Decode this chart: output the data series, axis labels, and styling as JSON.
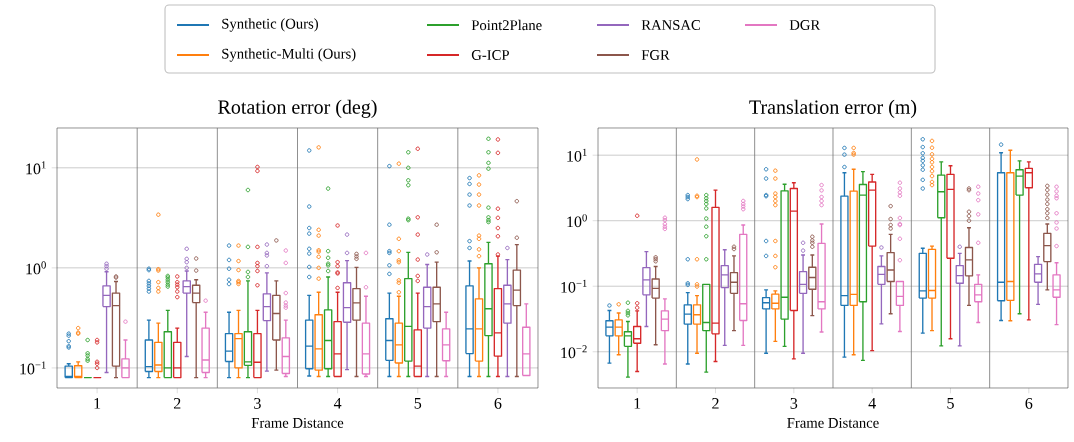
{
  "chart_data": [
    {
      "type": "box",
      "title": "Rotation error (deg)",
      "xlabel": "Frame Distance",
      "categories": [
        "1",
        "2",
        "3",
        "4",
        "5",
        "6"
      ],
      "log": "y",
      "grid": true,
      "legend": "top",
      "marker": "circle",
      "ylim": [
        0.063,
        25
      ],
      "yticks": [
        {
          "value": 0.1,
          "label": "10$^{−1}$"
        },
        {
          "value": 1,
          "label": "10$^{0}$"
        },
        {
          "value": 10,
          "label": "10$^{1}$"
        }
      ],
      "series": [
        {
          "name": "Synthetic (Ours)",
          "color": "#1f77b4",
          "boxes": [
            {
              "low": 0.08,
              "q1": 0.08,
              "median": 0.082,
              "q3": 0.104,
              "high": 0.11,
              "outliers": [
                0.16,
                0.165,
                0.185,
                0.21,
                0.22
              ]
            },
            {
              "low": 0.08,
              "q1": 0.092,
              "median": 0.103,
              "q3": 0.19,
              "high": 0.3,
              "outliers": [
                0.58,
                0.62,
                0.66,
                0.7,
                0.74,
                0.95,
                0.98
              ]
            },
            {
              "low": 0.08,
              "q1": 0.116,
              "median": 0.147,
              "q3": 0.22,
              "high": 0.36,
              "outliers": [
                0.69,
                0.76,
                0.98,
                1.2,
                1.67
              ]
            },
            {
              "low": 0.083,
              "q1": 0.098,
              "median": 0.165,
              "q3": 0.3,
              "high": 0.53,
              "outliers": [
                0.81,
                1.02,
                1.39,
                1.55,
                2.2,
                2.5,
                4.1,
                14.9
              ]
            },
            {
              "low": 0.082,
              "q1": 0.119,
              "median": 0.188,
              "q3": 0.31,
              "high": 0.56,
              "outliers": [
                0.87,
                1.06,
                1.41,
                1.47,
                2.7,
                10.4
              ]
            },
            {
              "low": 0.082,
              "q1": 0.139,
              "median": 0.246,
              "q3": 0.66,
              "high": 1.17,
              "outliers": [
                1.58,
                1.85,
                4.2,
                5.4,
                6.9,
                7.9
              ]
            }
          ]
        },
        {
          "name": "Synthetic-Multi (Ours)",
          "color": "#ff7f0e",
          "boxes": [
            {
              "low": 0.08,
              "q1": 0.08,
              "median": 0.082,
              "q3": 0.105,
              "high": 0.115,
              "outliers": [
                0.22,
                0.225,
                0.25
              ]
            },
            {
              "low": 0.08,
              "q1": 0.092,
              "median": 0.107,
              "q3": 0.18,
              "high": 0.28,
              "outliers": [
                0.58,
                0.63,
                0.72,
                0.94,
                0.97,
                3.4
              ]
            },
            {
              "low": 0.08,
              "q1": 0.1,
              "median": 0.196,
              "q3": 0.22,
              "high": 0.376,
              "outliers": [
                0.69,
                0.72,
                0.74,
                0.95,
                1.17,
                1.67
              ]
            },
            {
              "low": 0.082,
              "q1": 0.095,
              "median": 0.155,
              "q3": 0.34,
              "high": 0.57,
              "outliers": [
                0.78,
                1.0,
                1.29,
                1.45,
                1.5,
                2.1,
                2.4,
                16
              ]
            },
            {
              "low": 0.082,
              "q1": 0.112,
              "median": 0.17,
              "q3": 0.28,
              "high": 0.52,
              "outliers": [
                0.57,
                0.71,
                0.75,
                1.14,
                1.19,
                1.47,
                1.95,
                11
              ]
            },
            {
              "low": 0.082,
              "q1": 0.117,
              "median": 0.246,
              "q3": 0.49,
              "high": 1.0,
              "outliers": [
                1.31,
                1.53,
                1.95,
                2.1,
                4.2,
                5.4,
                6.8,
                8.4
              ]
            }
          ]
        },
        {
          "name": "Point2Plane",
          "color": "#2ca02c",
          "boxes": [
            {
              "low": 0.08,
              "q1": 0.08,
              "median": 0.08,
              "q3": 0.08,
              "high": 0.08,
              "outliers": [
                0.118,
                0.123,
                0.133,
                0.14,
                0.19
              ]
            },
            {
              "low": 0.08,
              "q1": 0.08,
              "median": 0.1,
              "q3": 0.23,
              "high": 0.376,
              "outliers": [
                0.65,
                0.68,
                0.72,
                0.76,
                0.8,
                0.83
              ]
            },
            {
              "low": 0.08,
              "q1": 0.106,
              "median": 0.115,
              "q3": 0.23,
              "high": 0.74,
              "outliers": [
                0.81,
                0.91,
                1.62,
                6.0
              ]
            },
            {
              "low": 0.082,
              "q1": 0.098,
              "median": 0.188,
              "q3": 0.38,
              "high": 0.81,
              "outliers": [
                0.93,
                1.06,
                1.1,
                1.26,
                1.47,
                6.2
              ]
            },
            {
              "low": 0.082,
              "q1": 0.117,
              "median": 0.26,
              "q3": 0.78,
              "high": 1.43,
              "outliers": [
                3.0,
                3.1,
                6.7,
                7.5,
                10,
                14.3
              ]
            },
            {
              "low": 0.082,
              "q1": 0.21,
              "median": 0.39,
              "q3": 1.1,
              "high": 1.8,
              "outliers": [
                2.87,
                3.0,
                3.2,
                4.0,
                9.8,
                11.2,
                14.3,
                19.5
              ]
            }
          ]
        },
        {
          "name": "G-ICP",
          "color": "#d62728",
          "boxes": [
            {
              "low": 0.08,
              "q1": 0.08,
              "median": 0.08,
              "q3": 0.08,
              "high": 0.08,
              "outliers": [
                0.1,
                0.11,
                0.115,
                0.18,
                0.19
              ]
            },
            {
              "low": 0.08,
              "q1": 0.08,
              "median": 0.1,
              "q3": 0.18,
              "high": 0.25,
              "outliers": [
                0.51,
                0.58,
                0.64,
                0.68,
                0.72,
                0.82
              ]
            },
            {
              "low": 0.08,
              "q1": 0.08,
              "median": 0.114,
              "q3": 0.22,
              "high": 0.376,
              "outliers": [
                0.67,
                0.93,
                1.04,
                1.12,
                1.62,
                9.3,
                10.2
              ]
            },
            {
              "low": 0.082,
              "q1": 0.082,
              "median": 0.138,
              "q3": 0.29,
              "high": 0.57,
              "outliers": [
                0.63,
                0.88,
                0.9,
                1.04,
                1.14,
                2.65
              ]
            },
            {
              "low": 0.082,
              "q1": 0.082,
              "median": 0.104,
              "q3": 0.24,
              "high": 0.56,
              "outliers": [
                0.74,
                0.83,
                1.21,
                2.15,
                3.2,
                15.5
              ]
            },
            {
              "low": 0.082,
              "q1": 0.131,
              "median": 0.224,
              "q3": 0.62,
              "high": 1.31,
              "outliers": [
                1.36,
                2.07,
                2.5,
                3.16,
                3.9,
                14.1,
                19.2
              ]
            }
          ]
        },
        {
          "name": "RANSAC",
          "color": "#9467bd",
          "boxes": [
            {
              "low": 0.09,
              "q1": 0.41,
              "median": 0.53,
              "q3": 0.66,
              "high": 0.915,
              "outliers": [
                0.98,
                1.04,
                1.1
              ]
            },
            {
              "low": 0.13,
              "q1": 0.56,
              "median": 0.65,
              "q3": 0.74,
              "high": 0.93,
              "outliers": [
                1.0,
                1.14,
                1.23,
                1.55
              ]
            },
            {
              "low": 0.093,
              "q1": 0.297,
              "median": 0.41,
              "q3": 0.55,
              "high": 0.89,
              "outliers": [
                1.04,
                1.33,
                1.41,
                1.71
              ]
            },
            {
              "low": 0.096,
              "q1": 0.286,
              "median": 0.4,
              "q3": 0.71,
              "high": 1.18,
              "outliers": [
                1.41,
                2.15
              ]
            },
            {
              "low": 0.082,
              "q1": 0.25,
              "median": 0.41,
              "q3": 0.64,
              "high": 1.08,
              "outliers": [
                1.36
              ]
            },
            {
              "low": 0.082,
              "q1": 0.28,
              "median": 0.436,
              "q3": 0.67,
              "high": 1.21,
              "outliers": [
                1.58
              ]
            }
          ]
        },
        {
          "name": "FGR",
          "color": "#8c564b",
          "boxes": [
            {
              "low": 0.08,
              "q1": 0.104,
              "median": 0.42,
              "q3": 0.56,
              "high": 0.73,
              "outliers": [
                0.8,
                0.82
              ]
            },
            {
              "low": 0.08,
              "q1": 0.45,
              "median": 0.56,
              "q3": 0.67,
              "high": 0.76,
              "outliers": [
                0.94,
                1.24
              ]
            },
            {
              "low": 0.095,
              "q1": 0.19,
              "median": 0.35,
              "q3": 0.53,
              "high": 0.74,
              "outliers": [
                1.88
              ]
            },
            {
              "low": 0.082,
              "q1": 0.3,
              "median": 0.447,
              "q3": 0.62,
              "high": 1.01,
              "outliers": [
                1.23,
                1.3,
                1.38
              ]
            },
            {
              "low": 0.082,
              "q1": 0.29,
              "median": 0.436,
              "q3": 0.64,
              "high": 1.14,
              "outliers": [
                1.43,
                2.7
              ]
            },
            {
              "low": 0.082,
              "q1": 0.42,
              "median": 0.6,
              "q3": 0.95,
              "high": 1.71,
              "outliers": [
                2.0,
                4.64
              ]
            }
          ]
        },
        {
          "name": "DGR",
          "color": "#e377c2",
          "boxes": [
            {
              "low": 0.08,
              "q1": 0.08,
              "median": 0.1,
              "q3": 0.123,
              "high": 0.19,
              "outliers": [
                0.29
              ]
            },
            {
              "low": 0.08,
              "q1": 0.09,
              "median": 0.12,
              "q3": 0.25,
              "high": 0.36,
              "outliers": [
                0.47
              ]
            },
            {
              "low": 0.082,
              "q1": 0.088,
              "median": 0.13,
              "q3": 0.2,
              "high": 0.3,
              "outliers": [
                0.4,
                0.42,
                0.45,
                0.56,
                1.12,
                1.49
              ]
            },
            {
              "low": 0.082,
              "q1": 0.087,
              "median": 0.138,
              "q3": 0.28,
              "high": 0.52,
              "outliers": [
                0.64,
                1.41
              ]
            },
            {
              "low": 0.082,
              "q1": 0.118,
              "median": 0.17,
              "q3": 0.246,
              "high": 0.36
            },
            {
              "low": 0.084,
              "q1": 0.084,
              "median": 0.138,
              "q3": 0.255,
              "high": 0.436
            }
          ]
        }
      ]
    },
    {
      "type": "box",
      "title": "Translation error (m)",
      "xlabel": "Frame Distance",
      "categories": [
        "1",
        "2",
        "3",
        "4",
        "5",
        "6"
      ],
      "log": "y",
      "grid": true,
      "marker": "circle",
      "ylim": [
        0.0028,
        26
      ],
      "yticks": [
        {
          "value": 0.01,
          "label": "10$^{−2}$"
        },
        {
          "value": 0.1,
          "label": "10$^{−1}$"
        },
        {
          "value": 1,
          "label": "10$^{0}$"
        },
        {
          "value": 10,
          "label": "10$^{1}$"
        }
      ],
      "series": [
        {
          "color": "#1f77b4",
          "boxes": [
            {
              "low": 0.0067,
              "q1": 0.0175,
              "median": 0.0238,
              "q3": 0.0297,
              "high": 0.0426,
              "outliers": [
                0.0508
              ]
            },
            {
              "low": 0.0065,
              "q1": 0.0264,
              "median": 0.0375,
              "q3": 0.052,
              "high": 0.08,
              "outliers": [
                0.105,
                0.111,
                0.258,
                2.14,
                2.3,
                2.46
              ]
            },
            {
              "low": 0.0095,
              "q1": 0.045,
              "median": 0.056,
              "q3": 0.067,
              "high": 0.088,
              "outliers": [
                0.29,
                0.49,
                2.37,
                2.46,
                4.4,
                6.1
              ]
            },
            {
              "low": 0.0083,
              "q1": 0.051,
              "median": 0.072,
              "q3": 2.37,
              "high": 5.4,
              "outliers": [
                6.6,
                10.2,
                12.9
              ]
            },
            {
              "low": 0.0192,
              "q1": 0.066,
              "median": 0.085,
              "q3": 0.318,
              "high": 0.38,
              "outliers": [
                3.1,
                4.2,
                6.0,
                7.0,
                8.2,
                9.1,
                10.7,
                13.3,
                17.5
              ]
            },
            {
              "low": 0.03,
              "q1": 0.06,
              "median": 0.115,
              "q3": 5.4,
              "high": 10.9,
              "outliers": [
                14.5
              ]
            }
          ]
        },
        {
          "color": "#ff7f0e",
          "boxes": [
            {
              "low": 0.009,
              "q1": 0.0175,
              "median": 0.0238,
              "q3": 0.0306,
              "high": 0.039,
              "outliers": [
                0.053
              ]
            },
            {
              "low": 0.0095,
              "q1": 0.0264,
              "median": 0.0367,
              "q3": 0.052,
              "high": 0.072,
              "outliers": [
                0.099,
                0.107,
                0.258,
                2.3,
                2.4,
                8.6
              ]
            },
            {
              "low": 0.0144,
              "q1": 0.045,
              "median": 0.055,
              "q3": 0.076,
              "high": 0.085,
              "outliers": [
                0.195,
                0.29,
                0.49,
                1.73,
                2.0,
                2.3,
                2.6,
                4.4,
                5.8
              ]
            },
            {
              "low": 0.009,
              "q1": 0.051,
              "median": 0.075,
              "q3": 2.83,
              "high": 6.1,
              "outliers": [
                10.2,
                10.8,
                12.9
              ]
            },
            {
              "low": 0.021,
              "q1": 0.066,
              "median": 0.086,
              "q3": 0.366,
              "high": 0.41,
              "outliers": [
                3.5,
                3.9,
                4.8,
                5.7,
                6.6,
                7.8,
                8.8,
                10.3,
                13,
                16.5
              ]
            },
            {
              "low": 0.0297,
              "q1": 0.061,
              "median": 0.118,
              "q3": 5.4,
              "high": 11.9
            }
          ]
        },
        {
          "color": "#2ca02c",
          "boxes": [
            {
              "low": 0.0041,
              "q1": 0.0121,
              "median": 0.0175,
              "q3": 0.0202,
              "high": 0.029,
              "outliers": [
                0.036,
                0.039,
                0.042,
                0.056
              ]
            },
            {
              "low": 0.0049,
              "q1": 0.021,
              "median": 0.028,
              "q3": 0.107,
              "high": 0.107,
              "outliers": [
                0.258,
                0.58,
                0.81,
                1.08,
                1.54,
                1.8,
                2.0,
                2.2,
                2.46
              ]
            },
            {
              "low": 0.0121,
              "q1": 0.0314,
              "median": 0.068,
              "q3": 2.86,
              "high": 3.6
            },
            {
              "low": 0.0074,
              "q1": 0.058,
              "median": 2.46,
              "q3": 3.57,
              "high": 5.6
            },
            {
              "low": 0.0123,
              "q1": 1.11,
              "median": 2.77,
              "q3": 4.96,
              "high": 7.9
            },
            {
              "low": 0.038,
              "q1": 2.46,
              "median": 4.8,
              "q3": 6.0,
              "high": 8.2
            }
          ]
        },
        {
          "color": "#d62728",
          "boxes": [
            {
              "low": 0.005,
              "q1": 0.0135,
              "median": 0.0158,
              "q3": 0.0243,
              "high": 0.042,
              "outliers": [
                0.047,
                0.055,
                1.19
              ]
            },
            {
              "low": 0.0071,
              "q1": 0.0188,
              "median": 0.0273,
              "q3": 1.6,
              "high": 2.93
            },
            {
              "low": 0.0078,
              "q1": 0.0426,
              "median": 1.4,
              "q3": 3.1,
              "high": 3.8
            },
            {
              "low": 0.0104,
              "q1": 0.41,
              "median": 2.93,
              "q3": 3.9,
              "high": 5.1
            },
            {
              "low": 0.0158,
              "q1": 0.267,
              "median": 3.0,
              "q3": 5.1,
              "high": 6.9
            },
            {
              "low": 0.0307,
              "q1": 3.18,
              "median": 5.4,
              "q3": 6.3,
              "high": 7.9
            }
          ]
        },
        {
          "color": "#9467bd",
          "boxes": [
            {
              "low": 0.0243,
              "q1": 0.074,
              "median": 0.125,
              "q3": 0.192,
              "high": 0.337
            },
            {
              "low": 0.0125,
              "q1": 0.095,
              "median": 0.149,
              "q3": 0.206,
              "high": 0.36
            },
            {
              "low": 0.0095,
              "q1": 0.078,
              "median": 0.107,
              "q3": 0.167,
              "high": 0.3,
              "outliers": [
                0.35,
                0.46
              ]
            },
            {
              "low": 0.0267,
              "q1": 0.107,
              "median": 0.152,
              "q3": 0.2,
              "high": 0.29,
              "outliers": [
                0.39
              ]
            },
            {
              "low": 0.0123,
              "q1": 0.111,
              "median": 0.145,
              "q3": 0.206,
              "high": 0.318,
              "outliers": [
                0.4
              ]
            },
            {
              "low": 0.053,
              "q1": 0.115,
              "median": 0.154,
              "q3": 0.216,
              "high": 0.283
            }
          ]
        },
        {
          "color": "#8c564b",
          "boxes": [
            {
              "low": 0.0128,
              "q1": 0.066,
              "median": 0.093,
              "q3": 0.129,
              "high": 0.2,
              "outliers": [
                0.24,
                0.26,
                0.277
              ]
            },
            {
              "low": 0.021,
              "q1": 0.078,
              "median": 0.115,
              "q3": 0.161,
              "high": 0.29,
              "outliers": [
                0.37,
                0.4
              ]
            },
            {
              "low": 0.0357,
              "q1": 0.09,
              "median": 0.136,
              "q3": 0.195,
              "high": 0.3,
              "outliers": [
                0.4,
                0.46,
                0.5,
                0.57
              ]
            },
            {
              "low": 0.038,
              "q1": 0.118,
              "median": 0.177,
              "q3": 0.326,
              "high": 0.62,
              "outliers": [
                0.76,
                0.86,
                1.06,
                1.67
              ]
            },
            {
              "low": 0.051,
              "q1": 0.144,
              "median": 0.252,
              "q3": 0.39,
              "high": 0.78,
              "outliers": [
                1.0,
                1.18,
                1.37,
                2.93,
                3.1
              ]
            },
            {
              "low": 0.088,
              "q1": 0.238,
              "median": 0.417,
              "q3": 0.64,
              "high": 0.89,
              "outliers": [
                1.1,
                1.3,
                1.5,
                1.8,
                2.1,
                2.5,
                2.95,
                3.4
              ]
            }
          ]
        },
        {
          "color": "#e377c2",
          "boxes": [
            {
              "low": 0.0065,
              "q1": 0.021,
              "median": 0.0314,
              "q3": 0.042,
              "high": 0.064,
              "outliers": [
                0.75,
                0.81,
                0.89,
                1.02,
                1.11
              ]
            },
            {
              "low": 0.0125,
              "q1": 0.03,
              "median": 0.054,
              "q3": 0.62,
              "high": 0.86,
              "outliers": [
                1.5,
                1.65,
                1.8,
                2.0
              ]
            },
            {
              "low": 0.02,
              "q1": 0.045,
              "median": 0.058,
              "q3": 0.45,
              "high": 0.89,
              "outliers": [
                1.73,
                2.0,
                2.3,
                2.9,
                3.5
              ]
            },
            {
              "low": 0.0204,
              "q1": 0.051,
              "median": 0.07,
              "q3": 0.118,
              "high": 0.118,
              "outliers": [
                0.25,
                0.53,
                0.86,
                0.89,
                1.1,
                2.4,
                2.7,
                3.1,
                3.8
              ]
            },
            {
              "low": 0.028,
              "q1": 0.058,
              "median": 0.074,
              "q3": 0.107,
              "high": 0.149,
              "outliers": [
                0.46,
                1.25,
                2.06,
                2.6,
                3.3
              ]
            },
            {
              "low": 0.026,
              "q1": 0.068,
              "median": 0.088,
              "q3": 0.149,
              "high": 0.228,
              "outliers": [
                0.41,
                0.76,
                0.94,
                1.3,
                2.2,
                2.4,
                2.8,
                3.3
              ]
            }
          ]
        }
      ]
    }
  ]
}
